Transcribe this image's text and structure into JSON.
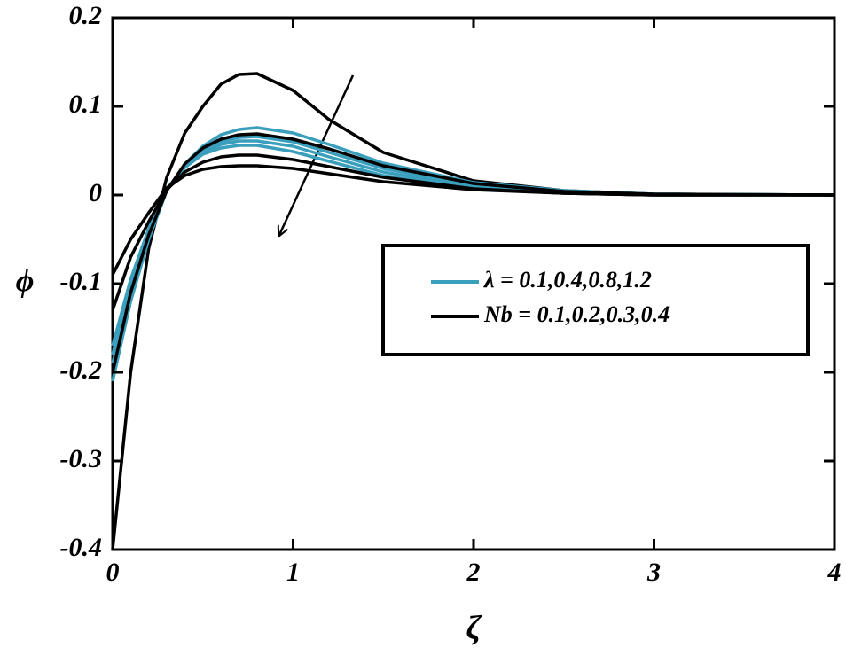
{
  "chart_data": {
    "type": "line",
    "x_label": "ζ",
    "y_label": "ϕ",
    "x": [
      0,
      0.1,
      0.2,
      0.3,
      0.4,
      0.5,
      0.6,
      0.7,
      0.8,
      1.0,
      1.2,
      1.5,
      2.0,
      2.5,
      3.0,
      4.0
    ],
    "series": [
      {
        "color": "#000000",
        "values": [
          -0.4,
          -0.2,
          -0.06,
          0.02,
          0.07,
          0.1,
          0.125,
          0.136,
          0.137,
          0.118,
          0.085,
          0.048,
          0.016,
          0.005,
          0.001,
          0
        ]
      },
      {
        "color": "#3a9fbd",
        "values": [
          -0.21,
          -0.12,
          -0.05,
          0.005,
          0.035,
          0.055,
          0.068,
          0.074,
          0.076,
          0.07,
          0.057,
          0.036,
          0.014,
          0.005,
          0.001,
          0
        ]
      },
      {
        "color": "#3a9fbd",
        "values": [
          -0.19,
          -0.11,
          -0.045,
          0.005,
          0.033,
          0.05,
          0.06,
          0.065,
          0.066,
          0.06,
          0.048,
          0.03,
          0.011,
          0.004,
          0.001,
          0
        ]
      },
      {
        "color": "#3a9fbd",
        "values": [
          -0.18,
          -0.1,
          -0.04,
          0.006,
          0.032,
          0.048,
          0.057,
          0.061,
          0.061,
          0.055,
          0.043,
          0.026,
          0.009,
          0.003,
          0.001,
          0
        ]
      },
      {
        "color": "#3a9fbd",
        "values": [
          -0.17,
          -0.095,
          -0.038,
          0.007,
          0.031,
          0.046,
          0.053,
          0.056,
          0.056,
          0.049,
          0.038,
          0.022,
          0.007,
          0.002,
          0,
          0
        ]
      },
      {
        "color": "#000000",
        "values": [
          -0.2,
          -0.11,
          -0.045,
          0.005,
          0.035,
          0.053,
          0.063,
          0.068,
          0.069,
          0.063,
          0.052,
          0.033,
          0.013,
          0.004,
          0.001,
          0
        ]
      },
      {
        "color": "#000000",
        "values": [
          -0.13,
          -0.07,
          -0.03,
          0.006,
          0.026,
          0.037,
          0.043,
          0.045,
          0.045,
          0.04,
          0.032,
          0.02,
          0.007,
          0.002,
          0,
          0
        ]
      },
      {
        "color": "#000000",
        "values": [
          -0.09,
          -0.05,
          -0.02,
          0.008,
          0.022,
          0.029,
          0.032,
          0.033,
          0.033,
          0.03,
          0.024,
          0.015,
          0.006,
          0.002,
          0,
          0
        ]
      }
    ],
    "legend": [
      {
        "label": "λ = 0.1,0.4,0.8,1.2",
        "color": "#3a9fbd"
      },
      {
        "label": "Nb = 0.1,0.2,0.3,0.4",
        "color": "#000000"
      }
    ],
    "xlim": [
      0,
      4
    ],
    "xticks": [
      0,
      1,
      2,
      3,
      4
    ],
    "ylim": [
      -0.4,
      0.2
    ],
    "yticks": [
      -0.4,
      -0.3,
      -0.2,
      -0.1,
      0,
      0.1,
      0.2
    ]
  }
}
